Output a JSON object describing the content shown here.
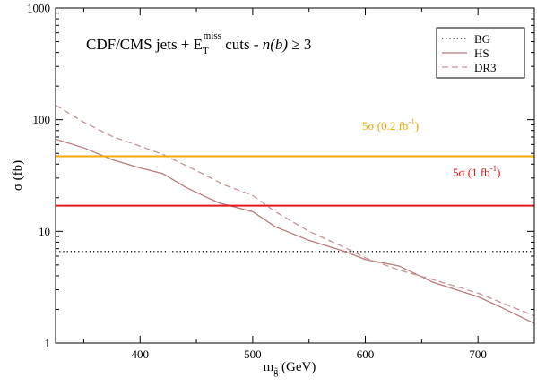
{
  "chart_data": {
    "type": "line",
    "title": "CDF/CMS jets + E",
    "title_sub": "T",
    "title_sup": "miss",
    "title_tail_plain": " cuts - ",
    "title_tail_italic": "n(b)",
    "title_tail_end": " ≥ 3",
    "xlabel": "m",
    "xlabel_sub": "g̃",
    "xlabel_unit": " (GeV)",
    "ylabel": "σ  (fb)",
    "xlim": [
      325,
      750
    ],
    "ylim": [
      1,
      1000
    ],
    "yscale": "log",
    "grid": false,
    "legend_position": "top-right",
    "x_ticks": [
      400,
      500,
      600,
      700
    ],
    "x_tick_labels": [
      "400",
      "500",
      "600",
      "700"
    ],
    "y_ticks": [
      1,
      10,
      100,
      1000
    ],
    "y_tick_labels": [
      "1",
      "10",
      "100",
      "1000"
    ],
    "series": [
      {
        "name": "BG",
        "color": "#000000",
        "dash": "dotted",
        "x": [
          325,
          750
        ],
        "y": [
          6.6,
          6.6
        ]
      },
      {
        "name": "HS",
        "color": "#b87c7c",
        "dash": "solid",
        "x": [
          325,
          350,
          375,
          400,
          420,
          440,
          460,
          470,
          500,
          520,
          550,
          580,
          600,
          630,
          660,
          690,
          700,
          720,
          750
        ],
        "y": [
          67,
          56,
          44,
          37,
          33,
          25,
          20,
          18,
          15,
          11,
          8.3,
          6.7,
          5.6,
          4.9,
          3.5,
          2.8,
          2.6,
          2.1,
          1.5
        ]
      },
      {
        "name": "DR3",
        "color": "#c49595",
        "dash": "dashed",
        "x": [
          325,
          350,
          375,
          400,
          420,
          450,
          475,
          500,
          520,
          550,
          580,
          600,
          630,
          660,
          700,
          750
        ],
        "y": [
          135,
          95,
          71,
          58,
          49,
          35,
          26,
          21,
          15,
          10,
          7.3,
          5.8,
          4.5,
          3.7,
          2.8,
          1.75
        ]
      }
    ],
    "reference_lines": [
      {
        "label_main": "5σ (0.2 fb",
        "label_sup": "-1",
        "label_end": ")",
        "color": "#f5a800",
        "y": 47,
        "label_x": 404,
        "label_y": 145
      },
      {
        "label_main": "5σ (1 fb",
        "label_sup": "-1",
        "label_end": ")",
        "color": "#e8141e",
        "y": 17,
        "label_x": 505,
        "label_y": 197
      }
    ]
  }
}
